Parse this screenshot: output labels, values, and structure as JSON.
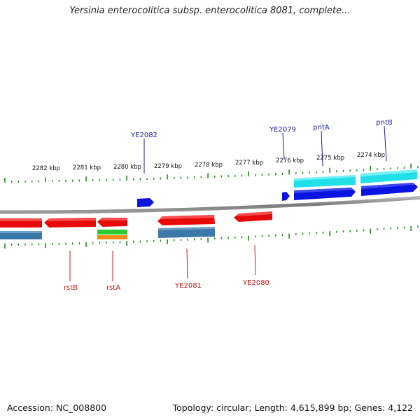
{
  "title": "Yersinia enterocolitica subsp. enterocolitica 8081, complete...",
  "footer": {
    "accession": "Accession: NC_008800",
    "summary": "Topology: circular; Length: 4,615,899 bp; Genes: 4,122"
  },
  "colors": {
    "backbone": "#8a8a8a",
    "tick": "#1e8a1e",
    "forward_gene": "#0a14e0",
    "forward_rna": "#22e0e8",
    "reverse_gene": "#e80a0a",
    "reverse_rna": "#3c78a8",
    "label_forward": "#1a1aaa",
    "label_reverse": "#cc1a1a",
    "green_feature": "#2ec82e",
    "orange_feature": "#f08c14"
  },
  "scale_labels": [
    "2282 kbp",
    "2281 kbp",
    "2280 kbp",
    "2279 kbp",
    "2278 kbp",
    "2277 kbp",
    "2276 kbp",
    "2275 kbp",
    "2274 kbp"
  ],
  "forward_labels": [
    "YE2082",
    "YE2079",
    "pntA",
    "pntB"
  ],
  "reverse_labels": [
    "rstB",
    "rstA",
    "YE2081",
    "YE2080"
  ]
}
